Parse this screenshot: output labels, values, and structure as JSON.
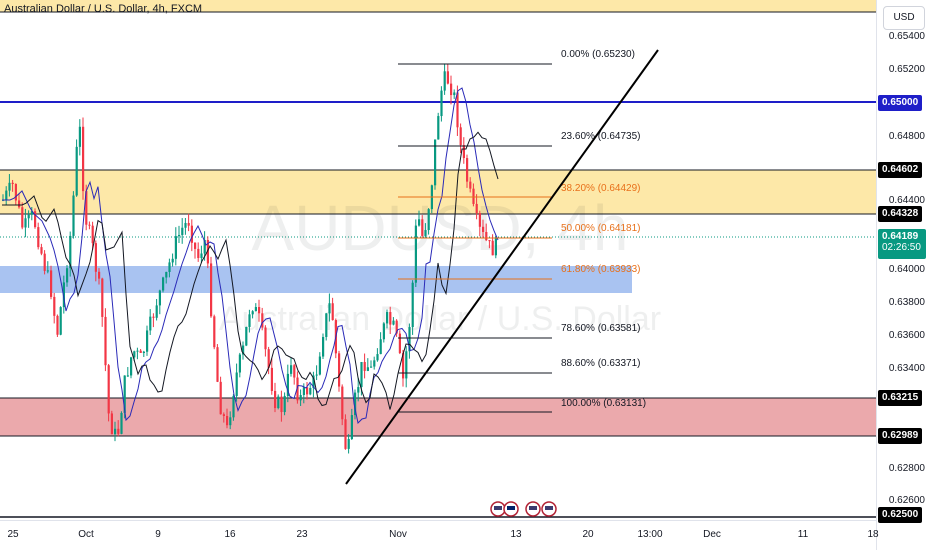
{
  "header": {
    "title": "Australian Dollar / U.S. Dollar, 4h, FXCM"
  },
  "watermark": {
    "symbol": "AUDUSD, 4h",
    "name": "Australian Dollar / U.S. Dollar"
  },
  "currency_button": "USD",
  "price_axis": {
    "ticks": [
      "0.65400",
      "0.65200",
      "0.64800",
      "0.64400",
      "0.64000",
      "0.63800",
      "0.63600",
      "0.63400",
      "0.62800",
      "0.62600"
    ],
    "tags": [
      {
        "text": "0.65000",
        "bg": "#1e1ec8",
        "fg": "#ffffff"
      },
      {
        "text": "0.64602",
        "bg": "#000000",
        "fg": "#ffffff"
      },
      {
        "text": "0.64328",
        "bg": "#000000",
        "fg": "#ffffff"
      },
      {
        "text": "0.64189",
        "sub": "02:26:50",
        "bg": "#089981",
        "fg": "#ffffff"
      },
      {
        "text": "0.63215",
        "bg": "#000000",
        "fg": "#ffffff"
      },
      {
        "text": "0.62989",
        "bg": "#000000",
        "fg": "#ffffff"
      },
      {
        "text": "0.62500",
        "bg": "#000000",
        "fg": "#ffffff"
      }
    ]
  },
  "fibonacci": {
    "levels": [
      {
        "label": "0.00% (0.65230)",
        "color": "#131722"
      },
      {
        "label": "23.60% (0.64735)",
        "color": "#131722"
      },
      {
        "label": "38.20% (0.64429)",
        "color": "#e8701a"
      },
      {
        "label": "50.00% (0.64181)",
        "color": "#e8701a"
      },
      {
        "label": "61.80% (0.63933)",
        "color": "#e8701a"
      },
      {
        "label": "78.60% (0.63581)",
        "color": "#131722"
      },
      {
        "label": "88.60% (0.63371)",
        "color": "#131722"
      },
      {
        "label": "100.00% (0.63131)",
        "color": "#131722"
      }
    ]
  },
  "time_axis": {
    "labels": [
      "25",
      "Oct",
      "9",
      "16",
      "23",
      "Nov",
      "13",
      "20",
      "13:00",
      "Dec",
      "11",
      "18"
    ]
  },
  "colors": {
    "bull": "#089981",
    "bear": "#f23645",
    "resistance_zone": "#fde8a8",
    "support_zone": "#e89a9e",
    "demand_zone": "#9ab8ef",
    "blue_line": "#1e1ec8",
    "ma_fast": "#2a2ab8",
    "ma_slow": "#131722"
  },
  "icons": [
    "flag-us-icon",
    "flag-au-icon",
    "flag-us-icon",
    "flag-us-icon"
  ]
}
